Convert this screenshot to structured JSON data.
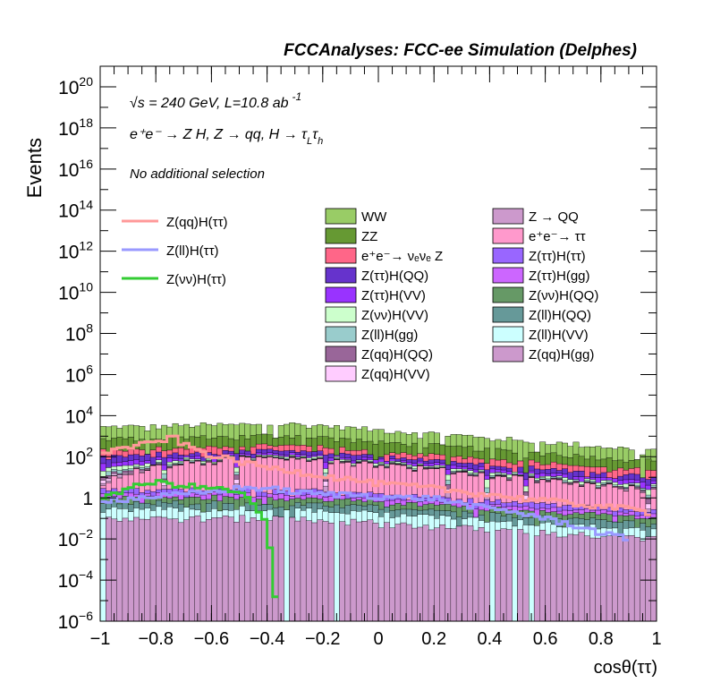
{
  "chart_data": {
    "type": "histogram",
    "title": "FCCAnalyses: FCC-ee Simulation (Delphes)",
    "ylabel": "Events",
    "xlabel": "cosθ(ττ)",
    "xlim": [
      -1,
      1
    ],
    "ylim": [
      1e-06,
      1e+21
    ],
    "yscale": "log",
    "x_tick_labels": [
      "−1",
      "−0.8",
      "−0.6",
      "−0.4",
      "−0.2",
      "0",
      "0.2",
      "0.4",
      "0.6",
      "0.8",
      "1"
    ],
    "x_tick_values": [
      -1,
      -0.8,
      -0.6,
      -0.4,
      -0.2,
      0,
      0.2,
      0.4,
      0.6,
      0.8,
      1
    ],
    "y_tick_values": [
      1e-06,
      0.0001,
      0.01,
      1,
      100,
      10000.0,
      1000000.0,
      100000000.0,
      10000000000.0,
      1000000000000.0,
      100000000000000.0,
      1e+16,
      1e+18,
      1e+20
    ],
    "y_tick_labels": [
      {
        "base": "10",
        "exp": "−6"
      },
      {
        "base": "10",
        "exp": "−4"
      },
      {
        "base": "10",
        "exp": "−2"
      },
      {
        "base": "1",
        "exp": ""
      },
      {
        "base": "10",
        "exp": "2"
      },
      {
        "base": "10",
        "exp": "4"
      },
      {
        "base": "10",
        "exp": "6"
      },
      {
        "base": "10",
        "exp": "8"
      },
      {
        "base": "10",
        "exp": "10"
      },
      {
        "base": "10",
        "exp": "12"
      },
      {
        "base": "10",
        "exp": "14"
      },
      {
        "base": "10",
        "exp": "16"
      },
      {
        "base": "10",
        "exp": "18"
      },
      {
        "base": "10",
        "exp": "20"
      }
    ],
    "annotations": {
      "energy": "√s = 240 GeV, L=10.8 ab",
      "energy_sup": "-1",
      "process": "e⁺e⁻ → Z H, Z → qq, H → τ",
      "process_sub1": "L",
      "process_tau": "τ",
      "process_sub2": "h",
      "selection": "No additional selection"
    },
    "grid": false,
    "legend_position": "top",
    "bins": 100,
    "stack_series": [
      {
        "name": "WW",
        "color": "#99cc66",
        "approx_level": [
          2000,
          3000,
          150
        ]
      },
      {
        "name": "ZZ",
        "color": "#669933",
        "approx_level": [
          500,
          700,
          40
        ]
      },
      {
        "name": "e⁺e⁻→ νₑνₑ Z",
        "color": "#ff6688",
        "approx_level": [
          100,
          150,
          10
        ]
      },
      {
        "name": "Z(ττ)H(QQ)",
        "color": "#6633cc",
        "approx_level": [
          50,
          60,
          5
        ]
      },
      {
        "name": "Z(ττ)H(VV)",
        "color": "#9933ff",
        "approx_level": [
          20,
          30,
          2
        ]
      },
      {
        "name": "Z(νν)H(VV)",
        "color": "#ccffcc",
        "approx_level": [
          10,
          15,
          1
        ]
      },
      {
        "name": "Z(ll)H(gg)",
        "color": "#99cccc",
        "approx_level": [
          5,
          8,
          0.5
        ]
      },
      {
        "name": "Z(qq)H(QQ)",
        "color": "#996699",
        "approx_level": [
          3,
          4,
          0.3
        ]
      },
      {
        "name": "Z(qq)H(VV)",
        "color": "#ffccff",
        "approx_level": [
          2,
          3,
          0.2
        ]
      },
      {
        "name": "Z → QQ",
        "color": "#cc99cc",
        "approx_level": [
          1,
          2,
          0.1
        ]
      },
      {
        "name": "e⁺e⁻→ ττ",
        "color": "#ff99cc",
        "approx_level": [
          1,
          100,
          2
        ]
      },
      {
        "name": "Z(ττ)H(ττ)",
        "color": "#9966ff",
        "approx_level": [
          1,
          1,
          0.1
        ]
      },
      {
        "name": "Z(ττ)H(gg)",
        "color": "#cc66ff",
        "approx_level": [
          0.5,
          0.5,
          0.05
        ]
      },
      {
        "name": "Z(νν)H(QQ)",
        "color": "#669966",
        "approx_level": [
          0.5,
          0.5,
          0.05
        ]
      },
      {
        "name": "Z(ll)H(QQ)",
        "color": "#669999",
        "approx_level": [
          0.3,
          0.3,
          0.03
        ]
      },
      {
        "name": "Z(ll)H(VV)",
        "color": "#ccffff",
        "approx_level": [
          0.2,
          0.2,
          0.02
        ]
      },
      {
        "name": "Z(qq)H(gg)",
        "color": "#cc99cc",
        "approx_level": [
          0.1,
          0.1,
          0.01
        ]
      }
    ],
    "line_series": [
      {
        "name": "Z(qq)H(ττ)",
        "color": "#ff9999",
        "points": [
          [
            -1,
            150
          ],
          [
            -0.9,
            300
          ],
          [
            -0.8,
            500
          ],
          [
            -0.74,
            1000
          ],
          [
            -0.7,
            400
          ],
          [
            -0.6,
            120
          ],
          [
            -0.5,
            60
          ],
          [
            -0.4,
            30
          ],
          [
            -0.3,
            20
          ],
          [
            -0.2,
            12
          ],
          [
            -0.1,
            8
          ],
          [
            0,
            5
          ],
          [
            0.1,
            4
          ],
          [
            0.2,
            3
          ],
          [
            0.3,
            2
          ],
          [
            0.4,
            1.5
          ],
          [
            0.5,
            1
          ],
          [
            0.6,
            0.8
          ],
          [
            0.7,
            0.5
          ],
          [
            0.8,
            0.4
          ],
          [
            0.9,
            0.3
          ],
          [
            0.97,
            0.2
          ]
        ]
      },
      {
        "name": "Z(ll)H(ττ)",
        "color": "#9999ff",
        "points": [
          [
            -1,
            0.8
          ],
          [
            -0.9,
            0.9
          ],
          [
            -0.8,
            1.2
          ],
          [
            -0.7,
            1.5
          ],
          [
            -0.6,
            2
          ],
          [
            -0.5,
            3
          ],
          [
            -0.4,
            3
          ],
          [
            -0.3,
            2
          ],
          [
            -0.2,
            1.5
          ],
          [
            -0.1,
            1.5
          ],
          [
            0,
            1.2
          ],
          [
            0.1,
            1
          ],
          [
            0.2,
            1
          ],
          [
            0.3,
            0.5
          ],
          [
            0.4,
            0.3
          ],
          [
            0.5,
            0.2
          ],
          [
            0.6,
            0.1
          ],
          [
            0.7,
            0.05
          ],
          [
            0.8,
            0.02
          ],
          [
            0.9,
            0.01
          ]
        ]
      },
      {
        "name": "Z(νν)H(ττ)",
        "color": "#33cc33",
        "points": [
          [
            -1,
            1
          ],
          [
            -0.9,
            3
          ],
          [
            -0.8,
            6
          ],
          [
            -0.7,
            4
          ],
          [
            -0.6,
            3
          ],
          [
            -0.5,
            2
          ],
          [
            -0.45,
            0.5
          ],
          [
            -0.4,
            0.05
          ],
          [
            -0.36,
            1e-06
          ]
        ]
      }
    ]
  }
}
